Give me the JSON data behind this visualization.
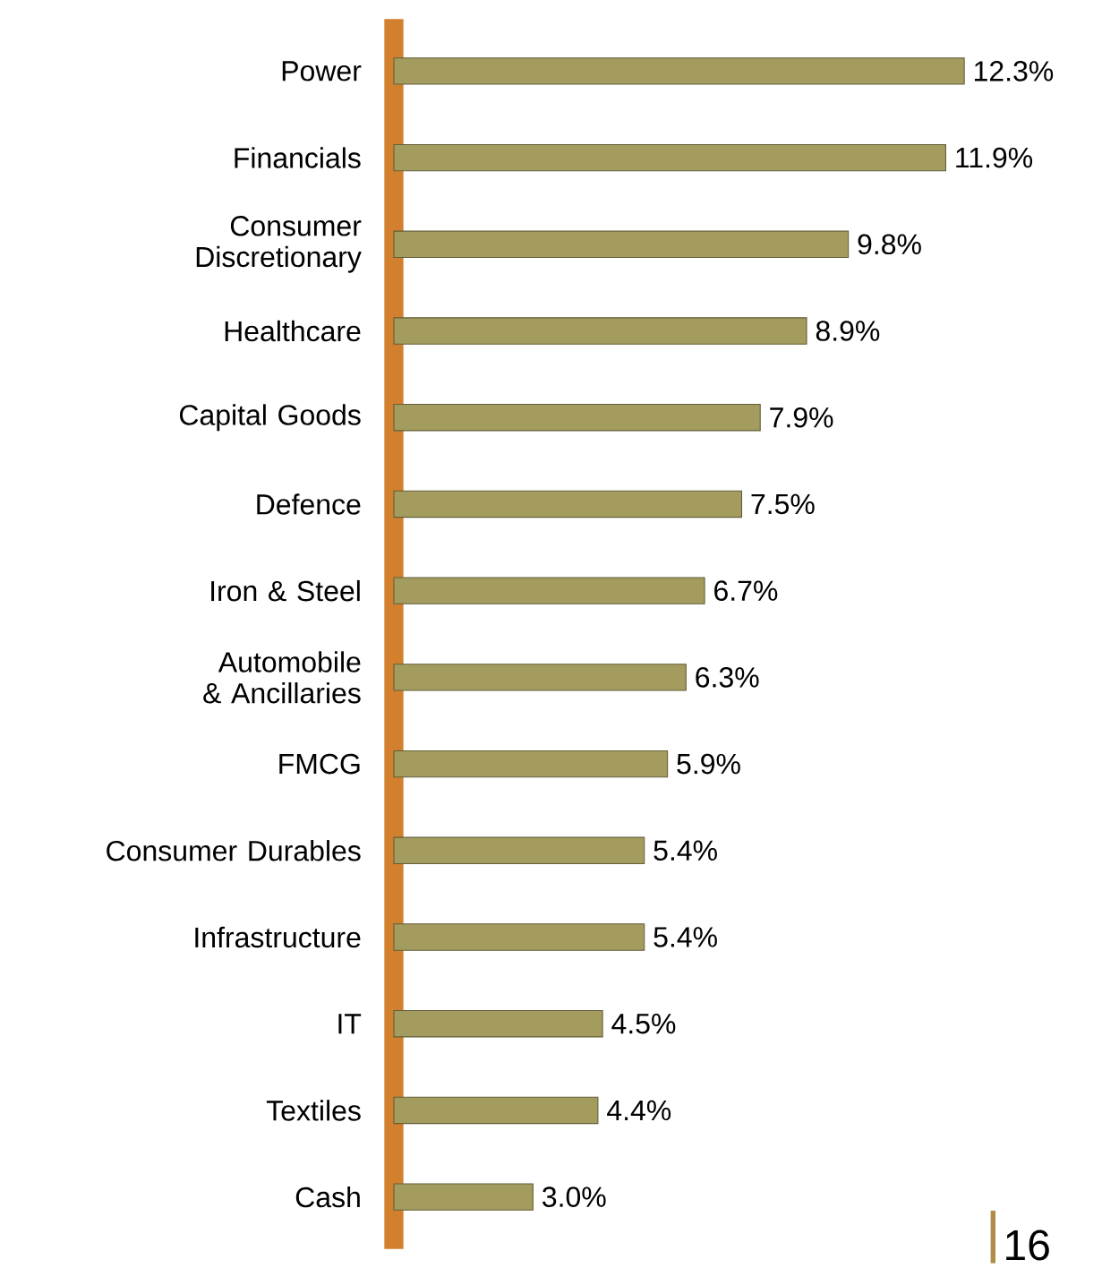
{
  "chart_data": {
    "type": "bar",
    "orientation": "horizontal",
    "categories": [
      "Power",
      "Financials",
      "Consumer Discretionary",
      "Healthcare",
      "Capital Goods",
      "Defence",
      "Iron & Steel",
      "Automobile & Ancillaries",
      "FMCG",
      "Consumer Durables",
      "Infrastructure",
      "IT",
      "Textiles",
      "Cash"
    ],
    "values": [
      12.3,
      11.9,
      9.8,
      8.9,
      7.9,
      7.5,
      6.7,
      6.3,
      5.9,
      5.4,
      5.4,
      4.5,
      4.4,
      3.0
    ],
    "value_labels": [
      "12.3%",
      "11.9%",
      "9.8%",
      "8.9%",
      "7.9%",
      "7.5%",
      "6.7%",
      "6.3%",
      "5.9%",
      "5.4%",
      "5.4%",
      "4.5%",
      "4.4%",
      "3.0%"
    ],
    "color": "#a49c5e",
    "annotations": [
      "16"
    ]
  }
}
